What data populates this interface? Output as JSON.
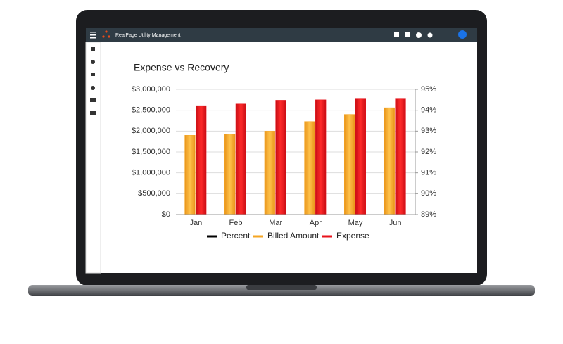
{
  "app": {
    "title": "RealPage Utility Management"
  },
  "chart_data": {
    "type": "bar",
    "title": "Expense vs Recovery",
    "categories": [
      "Jan",
      "Feb",
      "Mar",
      "Apr",
      "May",
      "Jun"
    ],
    "series": [
      {
        "name": "Percent",
        "color": "#000000",
        "type": "line",
        "axis": "y2",
        "values": [
          null,
          null,
          null,
          null,
          null,
          null
        ]
      },
      {
        "name": "Billed Amount",
        "color": "#f5a623",
        "values": [
          1900000,
          1930000,
          2000000,
          2230000,
          2400000,
          2560000
        ]
      },
      {
        "name": "Expense",
        "color": "#e8121b",
        "values": [
          2610000,
          2650000,
          2740000,
          2750000,
          2770000,
          2770000
        ]
      }
    ],
    "ylim": [
      0,
      3000000
    ],
    "yticks": [
      {
        "value": 0,
        "label": "$0"
      },
      {
        "value": 500000,
        "label": "$500,000"
      },
      {
        "value": 1000000,
        "label": "$1,000,000"
      },
      {
        "value": 1500000,
        "label": "$1,500,000"
      },
      {
        "value": 2000000,
        "label": "$2,000,000"
      },
      {
        "value": 2500000,
        "label": "$2,500,000"
      },
      {
        "value": 3000000,
        "label": "$3,000,000"
      }
    ],
    "y2lim": [
      89,
      95
    ],
    "y2ticks": [
      {
        "value": 89,
        "label": "89%"
      },
      {
        "value": 90,
        "label": "90%"
      },
      {
        "value": 91,
        "label": "91%"
      },
      {
        "value": 92,
        "label": "92%"
      },
      {
        "value": 93,
        "label": "93%"
      },
      {
        "value": 94,
        "label": "94%"
      },
      {
        "value": 95,
        "label": "95%"
      }
    ],
    "grid": true,
    "legend": "bottom"
  }
}
